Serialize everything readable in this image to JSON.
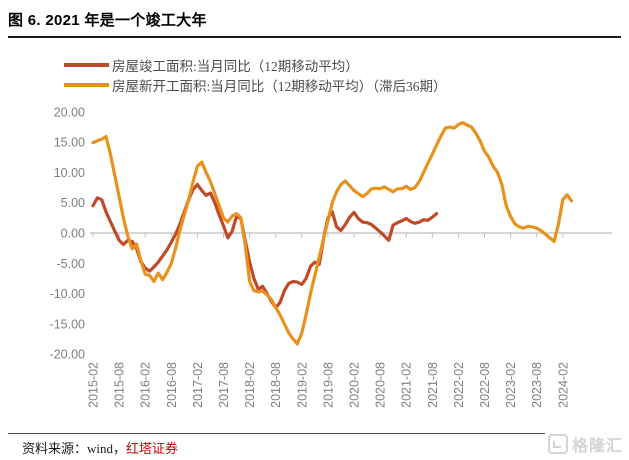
{
  "page": {
    "title": "图 6. 2021 年是一个竣工大年",
    "source_prefix": "资料来源：wind，",
    "source_org": "红塔证券",
    "watermark": "格隆汇"
  },
  "chart_data": {
    "type": "line",
    "title": "图 6. 2021 年是一个竣工大年",
    "xlabel": "",
    "ylabel": "",
    "ylim": [
      -20,
      20
    ],
    "grid": false,
    "legend_position": "top-left",
    "y_ticks": [
      20,
      15,
      10,
      5,
      0,
      -5,
      -10,
      -15,
      -20
    ],
    "y_tick_labels": [
      "20.00",
      "15.00",
      "10.00",
      "5.00",
      "0.00",
      "-5.00",
      "-10.00",
      "-15.00",
      "-20.00"
    ],
    "x_tick_labels": [
      "2015-02",
      "2015-08",
      "2016-02",
      "2016-08",
      "2017-02",
      "2017-08",
      "2018-02",
      "2018-08",
      "2019-02",
      "2019-08",
      "2020-02",
      "2020-08",
      "2021-02",
      "2021-08",
      "2022-02",
      "2022-08",
      "2023-02",
      "2023-08",
      "2024-02"
    ],
    "x_unit": "month",
    "series": [
      {
        "name": "房屋竣工面积:当月同比（12期移动平均）",
        "color": "#C04A28",
        "start_month": "2015-02",
        "end_month": "2021-09",
        "values": [
          4.5,
          5.8,
          5.5,
          3.5,
          1.9,
          0.3,
          -1.2,
          -1.9,
          -1.2,
          -1.4,
          -2.5,
          -4.7,
          -5.8,
          -6.3,
          -5.6,
          -4.8,
          -3.8,
          -2.8,
          -1.5,
          -0.2,
          1.5,
          3.5,
          5.5,
          7.2,
          8.0,
          7.0,
          6.2,
          6.6,
          5.0,
          3.0,
          1.2,
          -0.8,
          0.3,
          2.7,
          2.4,
          -1.3,
          -4.8,
          -7.5,
          -9.3,
          -8.8,
          -10.0,
          -11.3,
          -12.3,
          -11.5,
          -9.5,
          -8.3,
          -8.0,
          -8.1,
          -8.5,
          -7.5,
          -5.5,
          -4.8,
          -5.2,
          -1.0,
          2.5,
          3.5,
          1.0,
          0.4,
          1.4,
          2.6,
          3.4,
          2.4,
          1.8,
          1.7,
          1.4,
          0.8,
          0.2,
          -0.5,
          -1.2,
          1.3,
          1.7,
          2.0,
          2.4,
          1.9,
          1.6,
          1.8,
          2.2,
          2.1,
          2.6,
          3.2
        ]
      },
      {
        "name": "房屋新开工面积:当月同比（12期移动平均）（滞后36期）",
        "color": "#E8911D",
        "start_month": "2015-02",
        "end_month": "2024-04",
        "values": [
          14.9,
          15.2,
          15.5,
          15.9,
          13.0,
          9.5,
          6.0,
          2.5,
          -0.5,
          -2.6,
          -1.8,
          -4.5,
          -6.8,
          -7.0,
          -8.0,
          -6.6,
          -7.7,
          -6.5,
          -5.0,
          -2.5,
          0.5,
          3.0,
          5.5,
          8.5,
          11.0,
          11.7,
          10.0,
          8.5,
          6.5,
          4.5,
          2.5,
          1.8,
          2.8,
          3.2,
          2.5,
          -2.0,
          -8.0,
          -9.5,
          -9.7,
          -9.6,
          -10.2,
          -11.0,
          -12.3,
          -13.5,
          -15.0,
          -16.5,
          -17.5,
          -18.3,
          -16.5,
          -13.5,
          -10.0,
          -7.0,
          -4.0,
          -1.0,
          2.0,
          5.0,
          6.8,
          8.0,
          8.6,
          7.8,
          7.0,
          6.5,
          6.0,
          6.5,
          7.3,
          7.4,
          7.3,
          7.6,
          7.2,
          6.8,
          7.3,
          7.3,
          7.7,
          7.2,
          7.5,
          8.5,
          10.0,
          11.5,
          13.0,
          14.5,
          16.0,
          17.3,
          17.5,
          17.3,
          17.9,
          18.2,
          17.8,
          17.5,
          16.5,
          15.2,
          13.5,
          12.5,
          11.0,
          10.0,
          8.0,
          4.5,
          2.7,
          1.5,
          1.0,
          0.8,
          1.1,
          1.0,
          0.8,
          0.4,
          -0.2,
          -0.8,
          -1.4,
          1.5,
          5.5,
          6.3,
          5.3
        ]
      }
    ]
  }
}
